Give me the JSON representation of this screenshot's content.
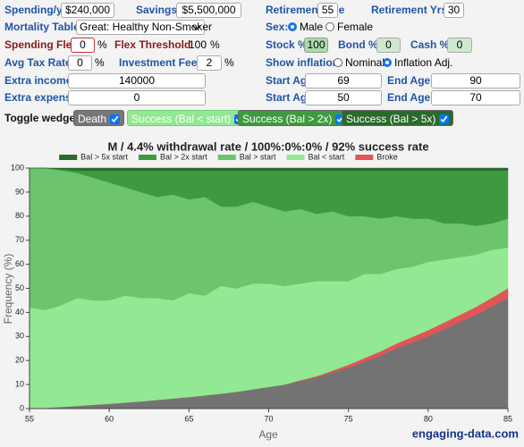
{
  "form": {
    "spending": {
      "label": "Spending/yr",
      "value": "$240,000"
    },
    "savings": {
      "label": "Savings",
      "value": "$5,500,000"
    },
    "retirement_age": {
      "label": "Retirement Age",
      "value": 55
    },
    "retirement_yrs": {
      "label": "Retirement Yrs",
      "value": 30
    },
    "mortality": {
      "label": "Mortality Table:",
      "value": "Great: Healthy Non-Smoker"
    },
    "sex": {
      "label": "Sex:",
      "options": [
        "Male",
        "Female"
      ]
    },
    "spending_flex": {
      "label": "Spending Flex",
      "value": 0,
      "unit": "%"
    },
    "flex_threshold": {
      "label": "Flex Threshold",
      "value": 100,
      "unit": "%"
    },
    "stock": {
      "label": "Stock %",
      "value": 100
    },
    "bond": {
      "label": "Bond %",
      "value": 0
    },
    "cash": {
      "label": "Cash %",
      "value": 0
    },
    "tax": {
      "label": "Avg Tax Rate",
      "value": 0,
      "unit": "%"
    },
    "fees": {
      "label": "Investment Fees",
      "value": 2,
      "unit": "%"
    },
    "inflation": {
      "label": "Show inflation:",
      "options": [
        "Nominal",
        "Inflation Adj."
      ]
    },
    "extra_income": {
      "label": "Extra income",
      "value": 140000,
      "start_label": "Start Age",
      "start": 69,
      "end_label": "End Age",
      "end": 90
    },
    "extra_expense": {
      "label": "Extra expense",
      "value": 0,
      "start_label": "Start Age",
      "start": 50,
      "end_label": "End Age",
      "end": 70
    }
  },
  "toggles": {
    "label": "Toggle wedges:",
    "buttons": [
      "Success (Bal < start)",
      "Success (Bal > 2x)",
      "Success (Bal > 5x)"
    ]
  },
  "watermark": "engaging-data.com",
  "chart_data": {
    "type": "area",
    "stacked": true,
    "title": "M / 4.4% withdrawal rate / 100%:0%:0% / 92% success rate",
    "x_label": "Age",
    "y_label": "Frequency (%)",
    "x": [
      55,
      56,
      57,
      58,
      59,
      60,
      61,
      62,
      63,
      64,
      65,
      66,
      67,
      68,
      69,
      70,
      71,
      72,
      73,
      74,
      75,
      76,
      77,
      78,
      79,
      80,
      81,
      82,
      83,
      84,
      85
    ],
    "xlim": [
      55,
      85
    ],
    "xticks": [
      55,
      60,
      65,
      70,
      75,
      80,
      85
    ],
    "ylim": [
      0,
      100
    ],
    "yticks": [
      0,
      10,
      20,
      30,
      40,
      50,
      60,
      70,
      80,
      90,
      100
    ],
    "grid": false,
    "legend": "top",
    "series": [
      {
        "name": "Death",
        "color": "#737373",
        "legend": false,
        "values": [
          0,
          0.3,
          0.7,
          1.1,
          1.6,
          2,
          2.5,
          3,
          3.6,
          4.2,
          4.8,
          5.5,
          6.2,
          7,
          8,
          9,
          10,
          11.5,
          13,
          15,
          17,
          19.5,
          22,
          25,
          27.5,
          30,
          33,
          36,
          39,
          42.5,
          46
        ]
      },
      {
        "name": "Broke",
        "color": "#e05555",
        "values": [
          0,
          0,
          0,
          0,
          0,
          0,
          0,
          0,
          0,
          0,
          0,
          0,
          0,
          0,
          0,
          0,
          0,
          0.3,
          0.5,
          0.8,
          1.2,
          1.5,
          1.8,
          2,
          2.3,
          2.6,
          2.8,
          3,
          3.3,
          3.6,
          4
        ]
      },
      {
        "name": "Bal < start",
        "color": "#93e893",
        "values": [
          42,
          40.7,
          42.3,
          44.9,
          43.4,
          43,
          44.5,
          43,
          42.4,
          40.8,
          43.2,
          41.5,
          44.8,
          43,
          44,
          43,
          41,
          40.2,
          39.5,
          37.2,
          34.8,
          35,
          32.2,
          31,
          29.2,
          28.4,
          26.2,
          24,
          21.7,
          19.9,
          17
        ]
      },
      {
        "name": "Bal > start",
        "color": "#6cc46c",
        "values": [
          58,
          59,
          56,
          52,
          51,
          49,
          45,
          44,
          42,
          44,
          39,
          41,
          33,
          34,
          34,
          32,
          31,
          31,
          28,
          29,
          27,
          24,
          23,
          22,
          20,
          18,
          15,
          14,
          12,
          11,
          12
        ]
      },
      {
        "name": "Bal > 2x start",
        "color": "#3f9a3f",
        "values": [
          0,
          0,
          0.5,
          1,
          3,
          5,
          7,
          9,
          11,
          10,
          12,
          11,
          15,
          15,
          13,
          15,
          17,
          16,
          18,
          17,
          19,
          19,
          20,
          19,
          20,
          20,
          22,
          22,
          23,
          22,
          20
        ]
      },
      {
        "name": "Bal > 5x start",
        "color": "#2a6a2a",
        "values": [
          0,
          0,
          0.5,
          1,
          1,
          1,
          1,
          1,
          1,
          1,
          1,
          1,
          1,
          1,
          1,
          1,
          1,
          1,
          1,
          1,
          1,
          1,
          1,
          1,
          1,
          1,
          1,
          1,
          1,
          1,
          1
        ]
      }
    ]
  }
}
